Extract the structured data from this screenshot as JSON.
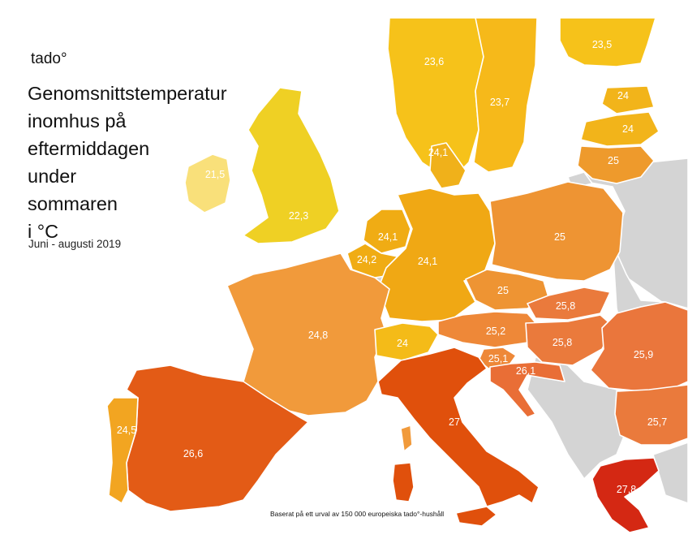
{
  "brand": {
    "logo_text": "tado°"
  },
  "title_lines": [
    "Genomsnittstemperatur",
    "inomhus på",
    "eftermiddagen",
    "under",
    "sommaren",
    "i °C"
  ],
  "subtitle": "Juni - augusti 2019",
  "footnote": "Baserat på ett urval av 150 000 europeiska tado°-hushåll",
  "map": {
    "colors": {
      "no_data": "#d4d4d4",
      "sea": "#ffffff"
    },
    "countries": [
      {
        "id": "ireland",
        "label": "21,5",
        "value": 21.5,
        "color": "#f9e07a"
      },
      {
        "id": "uk",
        "label": "22,3",
        "value": 22.3,
        "color": "#efd024"
      },
      {
        "id": "norway",
        "label": "23,6",
        "value": 23.6,
        "color": "#f6c21a"
      },
      {
        "id": "sweden",
        "label": "23,7",
        "value": 23.7,
        "color": "#f6b91a"
      },
      {
        "id": "finland",
        "label": "23,5",
        "value": 23.5,
        "color": "#f6c21a"
      },
      {
        "id": "estonia",
        "label": "24",
        "value": 24.0,
        "color": "#f2b41a"
      },
      {
        "id": "latvia",
        "label": "24",
        "value": 24.0,
        "color": "#f2b41a"
      },
      {
        "id": "lithuania",
        "label": "25",
        "value": 25.0,
        "color": "#ee9a2c"
      },
      {
        "id": "denmark",
        "label": "24,1",
        "value": 24.1,
        "color": "#f0b11a"
      },
      {
        "id": "netherlands",
        "label": "24,1",
        "value": 24.1,
        "color": "#f0ac14"
      },
      {
        "id": "belgium",
        "label": "24,2",
        "value": 24.2,
        "color": "#f0ac14"
      },
      {
        "id": "germany",
        "label": "24,1",
        "value": 24.1,
        "color": "#f0a814"
      },
      {
        "id": "poland",
        "label": "25",
        "value": 25.0,
        "color": "#ee9433"
      },
      {
        "id": "czechia",
        "label": "25",
        "value": 25.0,
        "color": "#ee9433"
      },
      {
        "id": "slovakia",
        "label": "25,8",
        "value": 25.8,
        "color": "#ea7a3c"
      },
      {
        "id": "austria",
        "label": "25,2",
        "value": 25.2,
        "color": "#ee8838"
      },
      {
        "id": "hungary",
        "label": "25,8",
        "value": 25.8,
        "color": "#ea7a3c"
      },
      {
        "id": "romania",
        "label": "25,9",
        "value": 25.9,
        "color": "#ea763c"
      },
      {
        "id": "bulgaria",
        "label": "25,7",
        "value": 25.7,
        "color": "#ea7a3c"
      },
      {
        "id": "slovenia",
        "label": "25,1",
        "value": 25.1,
        "color": "#ee8838"
      },
      {
        "id": "croatia",
        "label": "26,1",
        "value": 26.1,
        "color": "#e96e36"
      },
      {
        "id": "france",
        "label": "24,8",
        "value": 24.8,
        "color": "#f19a3b"
      },
      {
        "id": "switzerland",
        "label": "24",
        "value": 24.0,
        "color": "#f4bb18"
      },
      {
        "id": "spain",
        "label": "26,6",
        "value": 26.6,
        "color": "#e35b16"
      },
      {
        "id": "portugal",
        "label": "24,5",
        "value": 24.5,
        "color": "#f2a521"
      },
      {
        "id": "italy",
        "label": "27",
        "value": 27.0,
        "color": "#e0500c"
      },
      {
        "id": "greece",
        "label": "27,8",
        "value": 27.8,
        "color": "#d42813"
      }
    ]
  }
}
